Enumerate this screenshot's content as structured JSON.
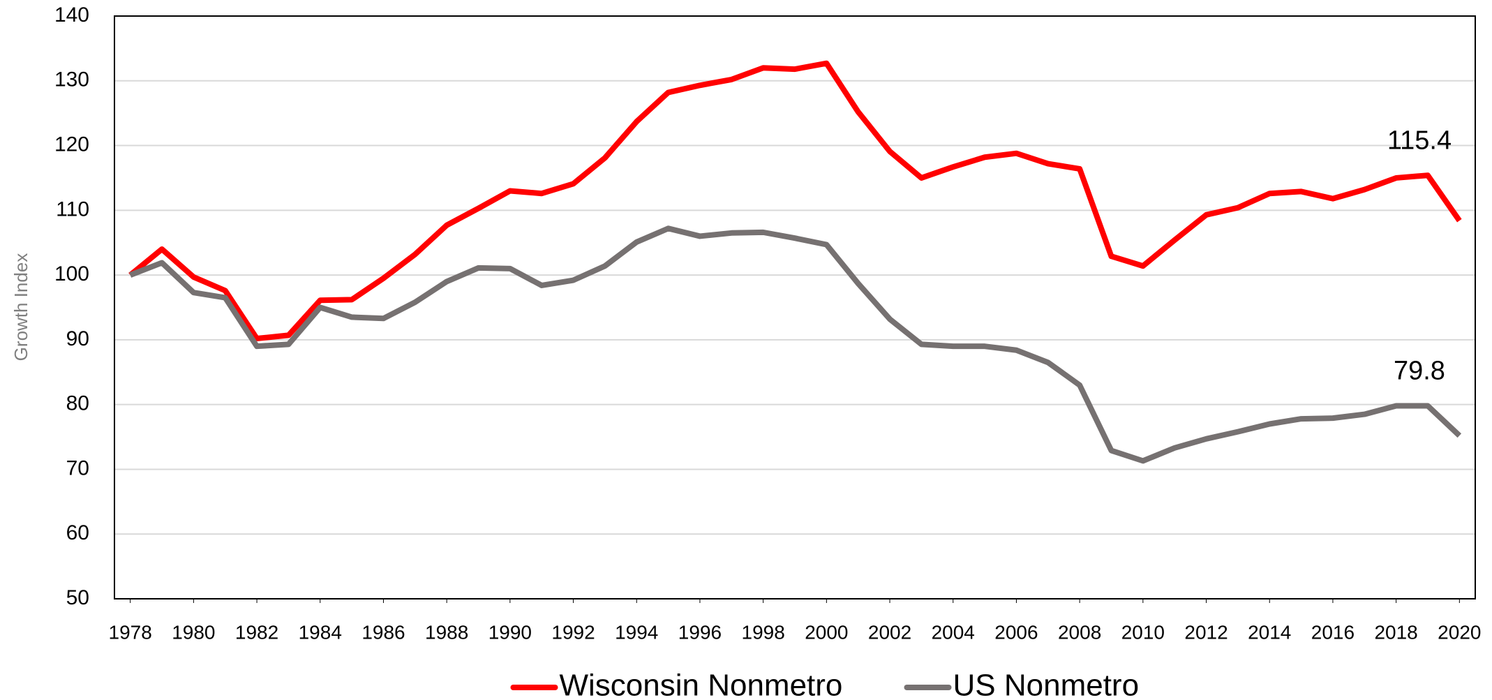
{
  "chart_data": {
    "type": "line",
    "x": [
      1978,
      1979,
      1980,
      1981,
      1982,
      1983,
      1984,
      1985,
      1986,
      1987,
      1988,
      1989,
      1990,
      1991,
      1992,
      1993,
      1994,
      1995,
      1996,
      1997,
      1998,
      1999,
      2000,
      2001,
      2002,
      2003,
      2004,
      2005,
      2006,
      2007,
      2008,
      2009,
      2010,
      2011,
      2012,
      2013,
      2014,
      2015,
      2016,
      2017,
      2018,
      2019,
      2020
    ],
    "xlim": [
      1977.5,
      2020.5
    ],
    "xticks": [
      1978,
      1980,
      1982,
      1984,
      1986,
      1988,
      1990,
      1992,
      1994,
      1996,
      1998,
      2000,
      2002,
      2004,
      2006,
      2008,
      2010,
      2012,
      2014,
      2016,
      2018,
      2020
    ],
    "ylim": [
      50,
      140
    ],
    "yticks": [
      50,
      60,
      70,
      80,
      90,
      100,
      110,
      120,
      130,
      140
    ],
    "y_label": "Growth Index",
    "grid": true,
    "legend": "bottom",
    "series": [
      {
        "name": "Wisconsin Nonmetro",
        "color": "#ff0000",
        "values": [
          100,
          104,
          99.7,
          97.6,
          90.2,
          90.7,
          96.1,
          96.2,
          99.5,
          103.2,
          107.7,
          110.3,
          113,
          112.6,
          114.1,
          118.1,
          123.7,
          128.2,
          129.3,
          130.2,
          132,
          131.8,
          132.7,
          125.2,
          119.1,
          115,
          116.7,
          118.2,
          118.8,
          117.2,
          116.4,
          102.9,
          101.4,
          105.4,
          109.3,
          110.4,
          112.6,
          112.9,
          111.8,
          113.2,
          115,
          115.4,
          108.4
        ],
        "value_labels": [
          null,
          null,
          null,
          null,
          null,
          null,
          null,
          null,
          null,
          null,
          null,
          null,
          null,
          null,
          null,
          null,
          null,
          null,
          null,
          null,
          null,
          null,
          null,
          null,
          null,
          null,
          null,
          null,
          null,
          null,
          null,
          null,
          null,
          null,
          null,
          null,
          null,
          null,
          null,
          null,
          null,
          "115.4",
          null
        ]
      },
      {
        "name": "US Nonmetro",
        "color": "#767171",
        "values": [
          100,
          101.9,
          97.3,
          96.5,
          89,
          89.3,
          95,
          93.5,
          93.3,
          95.8,
          99,
          101.1,
          101,
          98.4,
          99.2,
          101.4,
          105.1,
          107.2,
          106,
          106.5,
          106.6,
          105.7,
          104.7,
          98.7,
          93.2,
          89.3,
          89,
          89,
          88.4,
          86.5,
          83,
          72.9,
          71.3,
          73.3,
          74.7,
          75.8,
          77,
          77.8,
          77.9,
          78.5,
          79.8,
          79.8,
          75.2
        ],
        "value_labels": [
          null,
          null,
          null,
          null,
          null,
          null,
          null,
          null,
          null,
          null,
          null,
          null,
          null,
          null,
          null,
          null,
          null,
          null,
          null,
          null,
          null,
          null,
          null,
          null,
          null,
          null,
          null,
          null,
          null,
          null,
          null,
          null,
          null,
          null,
          null,
          null,
          null,
          null,
          null,
          null,
          null,
          "79.8",
          null
        ]
      }
    ]
  }
}
